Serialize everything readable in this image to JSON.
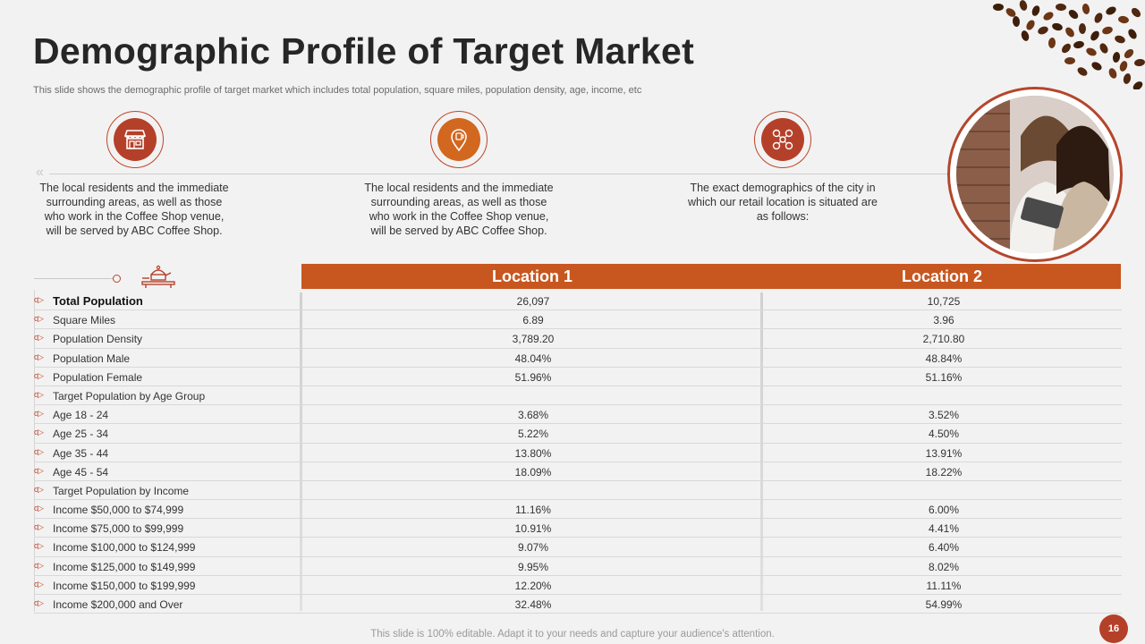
{
  "title": "Demographic Profile of Target Market",
  "subtitle": "This slide shows the demographic profile of target market which includes total population, square miles, population density, age, income, etc",
  "colors": {
    "accent": "#c8561f",
    "dark_accent": "#b5402a",
    "background": "#f2f2f2"
  },
  "features": [
    {
      "icon": "store-icon",
      "text": "The local residents and the immediate surrounding areas, as well as those who work in the Coffee Shop venue, will be served by ABC Coffee Shop."
    },
    {
      "icon": "location-pin-icon",
      "text": "The local residents and the immediate surrounding areas, as well as those who work in the Coffee Shop venue, will be served by ABC Coffee Shop."
    },
    {
      "icon": "network-icon",
      "text": "The exact demographics of the city in which our retail location is situated are as follows:"
    }
  ],
  "table": {
    "headers": [
      "Location 1",
      "Location 2"
    ],
    "rows": [
      {
        "label": "Total Population",
        "v1": "26,097",
        "v2": "10,725",
        "bold": true
      },
      {
        "label": "Square Miles",
        "v1": "6.89",
        "v2": "3.96"
      },
      {
        "label": "Population Density",
        "v1": "3,789.20",
        "v2": "2,710.80"
      },
      {
        "label": "Population Male",
        "v1": "48.04%",
        "v2": "48.84%"
      },
      {
        "label": "Population Female",
        "v1": "51.96%",
        "v2": "51.16%"
      },
      {
        "label": "Target Population by Age Group",
        "v1": "",
        "v2": ""
      },
      {
        "label": "Age 18 - 24",
        "v1": "3.68%",
        "v2": "3.52%"
      },
      {
        "label": "Age 25 - 34",
        "v1": "5.22%",
        "v2": "4.50%"
      },
      {
        "label": "Age 35 - 44",
        "v1": "13.80%",
        "v2": "13.91%"
      },
      {
        "label": "Age 45 - 54",
        "v1": "18.09%",
        "v2": "18.22%"
      },
      {
        "label": "Target Population by Income",
        "v1": "",
        "v2": ""
      },
      {
        "label": "Income $50,000 to $74,999",
        "v1": "11.16%",
        "v2": "6.00%"
      },
      {
        "label": "Income $75,000 to $99,999",
        "v1": "10.91%",
        "v2": "4.41%"
      },
      {
        "label": "Income $100,000 to $124,999",
        "v1": "9.07%",
        "v2": "6.40%"
      },
      {
        "label": "Income $125,000 to $149,999",
        "v1": "9.95%",
        "v2": "8.02%"
      },
      {
        "label": "Income $150,000 to $199,999",
        "v1": "12.20%",
        "v2": "11.11%"
      },
      {
        "label": "Income $200,000 and Over",
        "v1": "32.48%",
        "v2": "54.99%"
      }
    ]
  },
  "footer": "This slide is 100% editable. Adapt it to your needs and capture your audience's attention.",
  "page_number": "16"
}
